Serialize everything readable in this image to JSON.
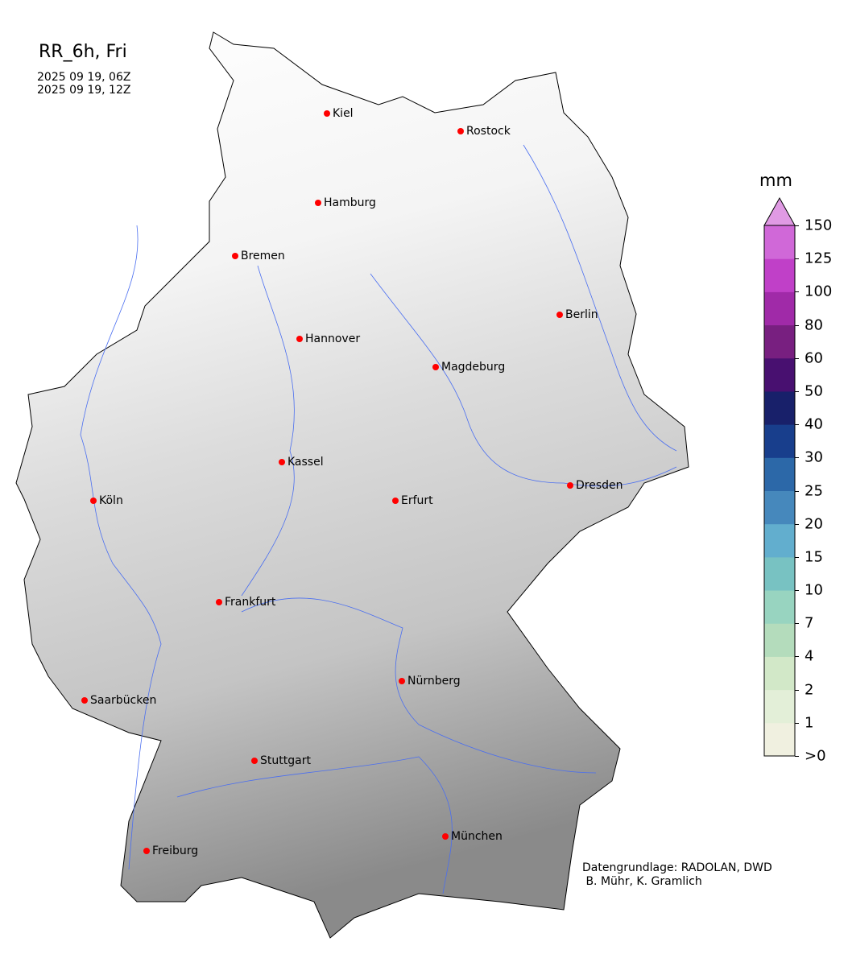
{
  "title": "RR_6h, Fri",
  "valid_from": "2025 09 19, 06Z",
  "valid_to": "2025 09 19, 12Z",
  "colorbar": {
    "unit": "mm",
    "ticks": [
      ">0",
      "1",
      "2",
      "4",
      "7",
      "10",
      "15",
      "20",
      "25",
      "30",
      "40",
      "50",
      "60",
      "80",
      "100",
      "125",
      "150"
    ],
    "colors": [
      "#f0f0e0",
      "#e3efd8",
      "#d2e8c8",
      "#b4dcbc",
      "#98d4c0",
      "#78c2c2",
      "#62aece",
      "#4688bc",
      "#2c68a8",
      "#183e8c",
      "#18206a",
      "#481070",
      "#781f80",
      "#a02aa8",
      "#c040c8",
      "#d068d8"
    ],
    "extend_color": "#e09ae4"
  },
  "cities": [
    "Kiel",
    "Rostock",
    "Hamburg",
    "Bremen",
    "Berlin",
    "Hannover",
    "Magdeburg",
    "Kassel",
    "Köln",
    "Erfurt",
    "Dresden",
    "Frankfurt",
    "Nürnberg",
    "Saarbücken",
    "Stuttgart",
    "München",
    "Freiburg"
  ],
  "credit": "Datengrundlage: RADOLAN, DWD\n B. Mühr, K. Gramlich",
  "marker_color": "#ff0000",
  "river_color": "#4a6ef0"
}
